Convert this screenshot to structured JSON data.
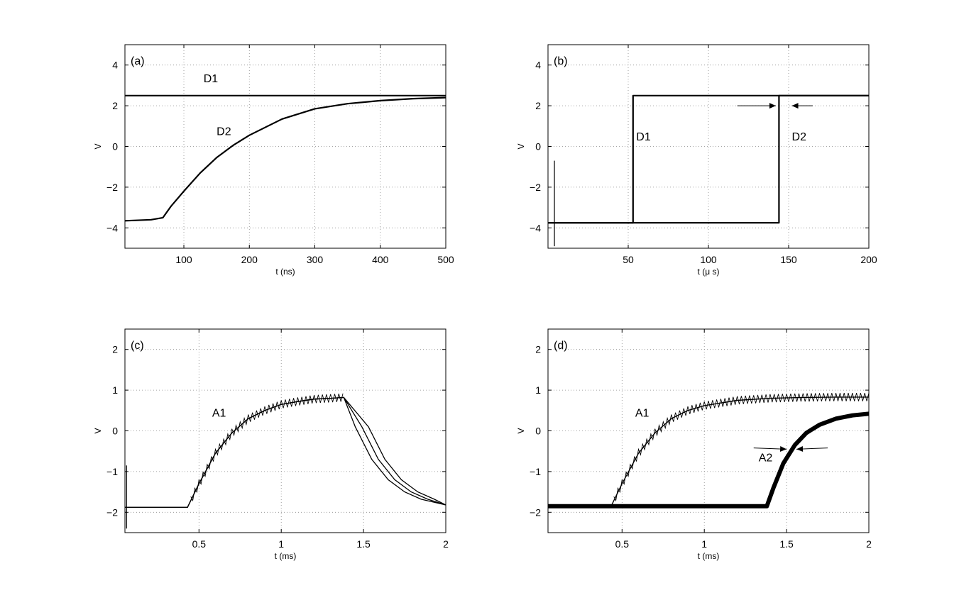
{
  "chart_data": [
    {
      "type": "line",
      "panel_label": "(a)",
      "xlabel": "t (ns)",
      "ylabel": "V",
      "xlim": [
        10,
        500
      ],
      "ylim": [
        -5,
        5
      ],
      "xticks": [
        100,
        200,
        300,
        400,
        500
      ],
      "xtick_labels": [
        "100",
        "200",
        "300",
        "400",
        "500"
      ],
      "yticks": [
        -4,
        -2,
        0,
        2,
        4
      ],
      "ytick_labels": [
        "−4",
        "−2",
        "0",
        "2",
        "4"
      ],
      "grid": true,
      "series": [
        {
          "name": "D1",
          "x": [
            10,
            100,
            200,
            300,
            400,
            500
          ],
          "y": [
            2.5,
            2.5,
            2.5,
            2.5,
            2.5,
            2.5
          ]
        },
        {
          "name": "D2",
          "x": [
            10,
            50,
            68,
            80,
            100,
            125,
            150,
            175,
            200,
            250,
            300,
            350,
            400,
            450,
            500
          ],
          "y": [
            -3.65,
            -3.6,
            -3.5,
            -2.95,
            -2.2,
            -1.3,
            -0.55,
            0.05,
            0.55,
            1.35,
            1.85,
            2.1,
            2.25,
            2.35,
            2.4
          ]
        }
      ],
      "annotations": [
        {
          "text": "D1",
          "x": 130,
          "y": 3.15
        },
        {
          "text": "D2",
          "x": 150,
          "y": 0.55
        }
      ]
    },
    {
      "type": "line",
      "panel_label": "(b)",
      "xlabel": "t (μ s)",
      "ylabel": "V",
      "xlim": [
        0,
        200
      ],
      "ylim": [
        -5,
        5
      ],
      "xticks": [
        50,
        100,
        150,
        200
      ],
      "xtick_labels": [
        "50",
        "100",
        "150",
        "200"
      ],
      "yticks": [
        -4,
        -2,
        0,
        2,
        4
      ],
      "ytick_labels": [
        "−4",
        "−2",
        "0",
        "2",
        "4"
      ],
      "grid": true,
      "series": [
        {
          "name": "D1",
          "x": [
            0,
            53,
            53,
            200
          ],
          "y": [
            -3.75,
            -3.75,
            2.5,
            2.5
          ]
        },
        {
          "name": "D2",
          "x": [
            0,
            144,
            144,
            150,
            150,
            200
          ],
          "y": [
            -3.75,
            -3.75,
            2.5,
            2.5,
            2.5,
            2.5
          ]
        }
      ],
      "annotations": [
        {
          "text": "D1",
          "x": 55,
          "y": 0.3
        },
        {
          "text": "D2",
          "x": 152,
          "y": 0.3
        }
      ]
    },
    {
      "type": "line",
      "panel_label": "(c)",
      "xlabel": "t (ms)",
      "ylabel": "V",
      "xlim": [
        0.05,
        2
      ],
      "ylim": [
        -2.5,
        2.5
      ],
      "xticks": [
        0.5,
        1,
        1.5,
        2
      ],
      "xtick_labels": [
        "0.5",
        "1",
        "1.5",
        "2"
      ],
      "yticks": [
        -2,
        -1,
        0,
        1,
        2
      ],
      "ytick_labels": [
        "−2",
        "−1",
        "0",
        "1",
        "2"
      ],
      "grid": true,
      "series": [
        {
          "name": "A1",
          "x": [
            0.05,
            0.43,
            0.5,
            0.6,
            0.7,
            0.8,
            0.9,
            1.0,
            1.1,
            1.2,
            1.3,
            1.38,
            1.45,
            1.55,
            1.65,
            1.75,
            1.85,
            2.0
          ],
          "y": [
            -1.88,
            -1.88,
            -1.3,
            -0.55,
            -0.05,
            0.3,
            0.5,
            0.65,
            0.72,
            0.78,
            0.8,
            0.82,
            0.1,
            -0.7,
            -1.2,
            -1.5,
            -1.68,
            -1.82
          ]
        }
      ],
      "annotations": [
        {
          "text": "A1",
          "x": 0.58,
          "y": 0.35
        }
      ]
    },
    {
      "type": "line",
      "panel_label": "(d)",
      "xlabel": "t (ms)",
      "ylabel": "V",
      "xlim": [
        0.05,
        2
      ],
      "ylim": [
        -2.5,
        2.5
      ],
      "xticks": [
        0.5,
        1,
        1.5,
        2
      ],
      "xtick_labels": [
        "0.5",
        "1",
        "1.5",
        "2"
      ],
      "yticks": [
        -2,
        -1,
        0,
        1,
        2
      ],
      "ytick_labels": [
        "−2",
        "−1",
        "0",
        "1",
        "2"
      ],
      "grid": true,
      "series": [
        {
          "name": "A1",
          "x": [
            0.05,
            0.43,
            0.5,
            0.6,
            0.7,
            0.8,
            0.9,
            1.0,
            1.2,
            1.4,
            1.6,
            1.8,
            2.0
          ],
          "y": [
            -1.88,
            -1.88,
            -1.3,
            -0.55,
            -0.05,
            0.3,
            0.5,
            0.62,
            0.75,
            0.8,
            0.82,
            0.83,
            0.83
          ]
        },
        {
          "name": "A2",
          "x": [
            0.05,
            1.38,
            1.42,
            1.48,
            1.55,
            1.62,
            1.7,
            1.8,
            1.9,
            2.0
          ],
          "y": [
            -1.85,
            -1.85,
            -1.4,
            -0.8,
            -0.35,
            -0.05,
            0.15,
            0.3,
            0.38,
            0.42
          ]
        }
      ],
      "annotations": [
        {
          "text": "A1",
          "x": 0.58,
          "y": 0.35
        },
        {
          "text": "A2",
          "x": 1.33,
          "y": -0.75
        }
      ]
    }
  ]
}
